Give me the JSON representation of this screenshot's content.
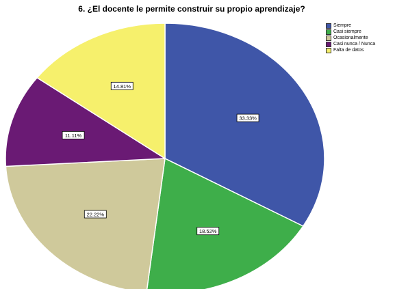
{
  "chart_data": {
    "type": "pie",
    "title": "6. ¿El docente le permite construir su propio aprendizaje?",
    "slices": [
      {
        "label": "Siempre",
        "percent": 33.33,
        "display": "33.33%",
        "color": "#3f56a8"
      },
      {
        "label": "Casi siempre",
        "percent": 18.52,
        "display": "18.52%",
        "color": "#3eae4a"
      },
      {
        "label": "Ocasionalmente",
        "percent": 22.22,
        "display": "22.22%",
        "color": "#cfc99b"
      },
      {
        "label": "Casi nunca / Nunca",
        "percent": 11.11,
        "display": "11.11%",
        "color": "#6a1a74"
      },
      {
        "label": "Falta de datos",
        "percent": 14.81,
        "display": "14.81%",
        "color": "#f6f06c"
      }
    ],
    "legend_position": "top-right"
  }
}
